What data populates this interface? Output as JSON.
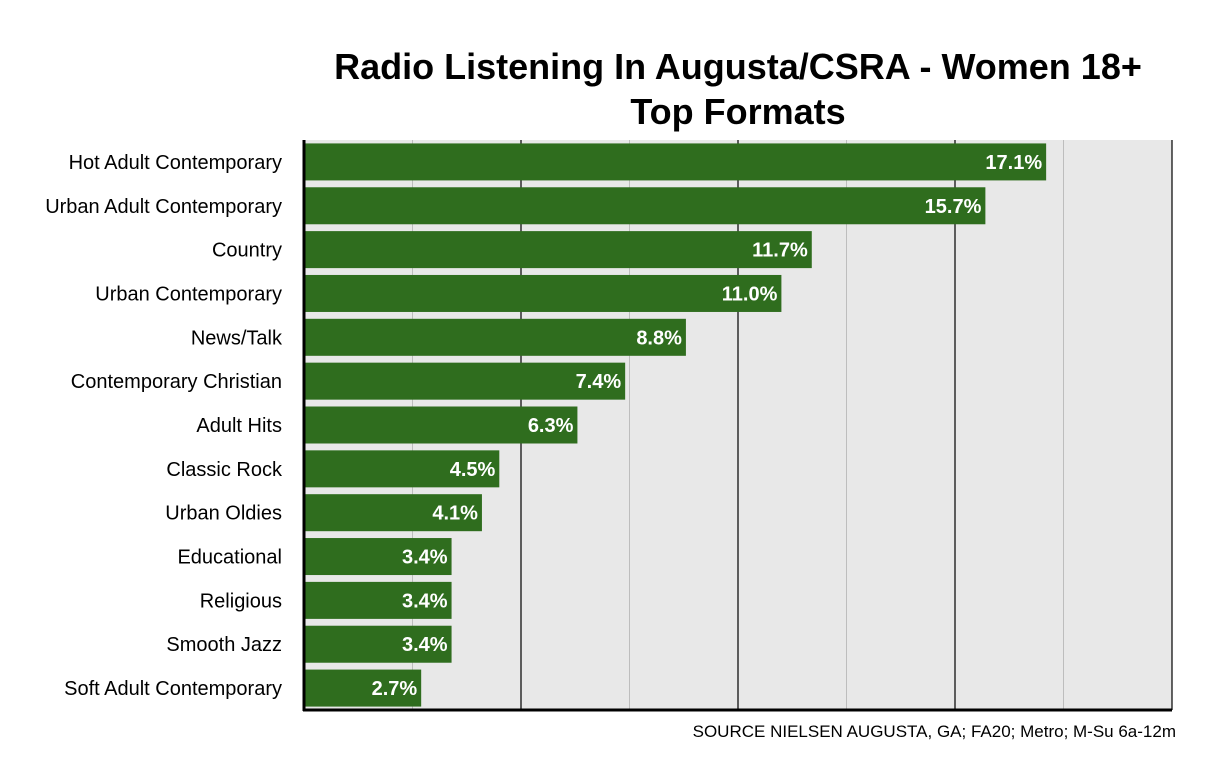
{
  "title_line1": "Radio Listening In Augusta/CSRA - Women 18+",
  "title_line2": "Top Formats",
  "source": "SOURCE NIELSEN AUGUSTA, GA; FA20; Metro; M-Su 6a-12m",
  "colors": {
    "bar": "#2f6d1e",
    "plot_bg": "#e8e8e8",
    "bar_label": "#ffffff"
  },
  "chart_data": {
    "type": "bar",
    "orientation": "horizontal",
    "title": "Radio Listening In Augusta/CSRA - Women 18+ Top Formats",
    "categories": [
      "Hot Adult Contemporary",
      "Urban Adult Contemporary",
      "Country",
      "Urban Contemporary",
      "News/Talk",
      "Contemporary Christian",
      "Adult Hits",
      "Classic Rock",
      "Urban Oldies",
      "Educational",
      "Religious",
      "Smooth Jazz",
      "Soft Adult Contemporary"
    ],
    "values": [
      17.1,
      15.7,
      11.7,
      11.0,
      8.8,
      7.4,
      6.3,
      4.5,
      4.1,
      3.4,
      3.4,
      3.4,
      2.7
    ],
    "value_labels": [
      "17.1%",
      "15.7%",
      "11.7%",
      "11.0%",
      "8.8%",
      "7.4%",
      "6.3%",
      "4.5%",
      "4.1%",
      "3.4%",
      "3.4%",
      "3.4%",
      "2.7%"
    ],
    "xlim": [
      0,
      20
    ],
    "grid_major_step": 5,
    "grid_minor_step": 2.5,
    "grid": true,
    "xlabel": "",
    "ylabel": ""
  }
}
